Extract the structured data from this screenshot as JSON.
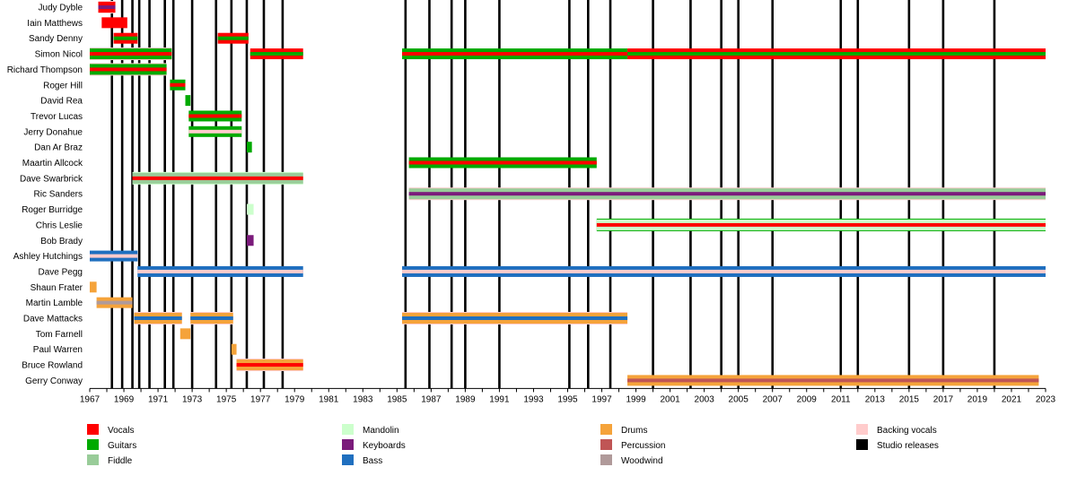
{
  "chart_data": {
    "type": "timeline",
    "title": "",
    "x_range": [
      1967,
      2023
    ],
    "tick_labels": [
      "1967",
      "1969",
      "1971",
      "1973",
      "1975",
      "1977",
      "1979",
      "1981",
      "1983",
      "1985",
      "1987",
      "1989",
      "1991",
      "1993",
      "1995",
      "1997",
      "1999",
      "2001",
      "2003",
      "2005",
      "2007",
      "2009",
      "2011",
      "2013",
      "2015",
      "2017",
      "2019",
      "2021",
      "2023"
    ],
    "grid": false,
    "studio_releases": [
      1968.3,
      1968.9,
      1969.5,
      1969.9,
      1970.5,
      1971.4,
      1971.9,
      1973.0,
      1974.4,
      1975.3,
      1976.2,
      1977.2,
      1978.3,
      1985.5,
      1986.9,
      1988.2,
      1989.0,
      1991.0,
      1995.1,
      1996.2,
      1997.5,
      2000.0,
      2002.2,
      2004.0,
      2005.0,
      2007.0,
      2011.0,
      2012.0,
      2015.0,
      2017.0,
      2020.0
    ],
    "members": [
      {
        "name": "Judy Dyble",
        "bars": [
          {
            "start": 1967.5,
            "end": 1968.5,
            "main": "vocals",
            "accent": "keyboards",
            "extra": "backing"
          }
        ]
      },
      {
        "name": "Iain Matthews",
        "bars": [
          {
            "start": 1967.7,
            "end": 1969.2,
            "main": "vocals"
          }
        ]
      },
      {
        "name": "Sandy Denny",
        "bars": [
          {
            "start": 1968.4,
            "end": 1969.8,
            "main": "vocals",
            "accent": "guitars"
          },
          {
            "start": 1974.5,
            "end": 1976.3,
            "main": "vocals",
            "accent": "guitars"
          }
        ]
      },
      {
        "name": "Simon Nicol",
        "bars": [
          {
            "start": 1967.0,
            "end": 1971.8,
            "main": "guitars",
            "accent": "vocals",
            "extra": "backing"
          },
          {
            "start": 1976.4,
            "end": 1979.5,
            "main": "vocals",
            "accent": "guitars"
          },
          {
            "start": 1985.3,
            "end": 1998.5,
            "main": "guitars",
            "accent": "vocals"
          },
          {
            "start": 1998.5,
            "end": 2023.0,
            "main": "vocals",
            "accent": "guitars"
          }
        ]
      },
      {
        "name": "Richard Thompson",
        "bars": [
          {
            "start": 1967.0,
            "end": 1971.5,
            "main": "guitars",
            "accent": "vocals",
            "extra": "backing"
          }
        ]
      },
      {
        "name": "Roger Hill",
        "bars": [
          {
            "start": 1971.7,
            "end": 1972.6,
            "main": "guitars",
            "accent": "vocals"
          }
        ]
      },
      {
        "name": "David Rea",
        "bars": [
          {
            "start": 1972.6,
            "end": 1972.9,
            "main": "guitars"
          }
        ]
      },
      {
        "name": "Trevor Lucas",
        "bars": [
          {
            "start": 1972.8,
            "end": 1975.9,
            "main": "guitars",
            "accent": "vocals"
          }
        ]
      },
      {
        "name": "Jerry Donahue",
        "bars": [
          {
            "start": 1972.8,
            "end": 1975.9,
            "main": "guitars",
            "accent": "backing"
          }
        ]
      },
      {
        "name": "Dan Ar Braz",
        "bars": [
          {
            "start": 1976.2,
            "end": 1976.5,
            "main": "guitars"
          }
        ]
      },
      {
        "name": "Maartin Allcock",
        "bars": [
          {
            "start": 1985.7,
            "end": 1996.7,
            "main": "guitars",
            "accent": "vocals"
          }
        ]
      },
      {
        "name": "Dave Swarbrick",
        "bars": [
          {
            "start": 1969.5,
            "end": 1979.5,
            "main": "fiddle",
            "accent": "vocals",
            "extra": "mandolin"
          }
        ]
      },
      {
        "name": "Ric Sanders",
        "bars": [
          {
            "start": 1985.7,
            "end": 2023.0,
            "main": "fiddle",
            "accent": "keyboards",
            "extra": "backing"
          }
        ]
      },
      {
        "name": "Roger Burridge",
        "bars": [
          {
            "start": 1976.2,
            "end": 1976.6,
            "main": "mandolin"
          }
        ]
      },
      {
        "name": "Chris Leslie",
        "bars": [
          {
            "start": 1996.7,
            "end": 2023.0,
            "main": "mandolin",
            "accent": "vocals",
            "extra": "guitars"
          }
        ]
      },
      {
        "name": "Bob Brady",
        "bars": [
          {
            "start": 1976.2,
            "end": 1976.6,
            "main": "keyboards"
          }
        ]
      },
      {
        "name": "Ashley Hutchings",
        "bars": [
          {
            "start": 1967.0,
            "end": 1969.8,
            "main": "bass",
            "accent": "backing"
          }
        ]
      },
      {
        "name": "Dave Pegg",
        "bars": [
          {
            "start": 1969.8,
            "end": 1979.5,
            "main": "bass",
            "accent": "backing"
          },
          {
            "start": 1985.3,
            "end": 2023.0,
            "main": "bass",
            "accent": "backing"
          }
        ]
      },
      {
        "name": "Shaun Frater",
        "bars": [
          {
            "start": 1967.0,
            "end": 1967.4,
            "main": "drums"
          }
        ]
      },
      {
        "name": "Martin Lamble",
        "bars": [
          {
            "start": 1967.4,
            "end": 1969.5,
            "main": "drums",
            "accent": "woodwind"
          }
        ]
      },
      {
        "name": "Dave Mattacks",
        "bars": [
          {
            "start": 1969.6,
            "end": 1972.4,
            "main": "drums",
            "accent": "bass",
            "extra": "backing"
          },
          {
            "start": 1972.9,
            "end": 1975.4,
            "main": "drums",
            "accent": "bass",
            "extra": "backing"
          },
          {
            "start": 1985.3,
            "end": 1998.5,
            "main": "drums",
            "accent": "bass",
            "extra": "backing"
          }
        ]
      },
      {
        "name": "Tom Farnell",
        "bars": [
          {
            "start": 1972.3,
            "end": 1972.9,
            "main": "drums"
          }
        ]
      },
      {
        "name": "Paul Warren",
        "bars": [
          {
            "start": 1975.3,
            "end": 1975.6,
            "main": "drums"
          }
        ]
      },
      {
        "name": "Bruce Rowland",
        "bars": [
          {
            "start": 1975.6,
            "end": 1979.5,
            "main": "drums",
            "accent": "vocals",
            "extra": "backing"
          }
        ]
      },
      {
        "name": "Gerry Conway",
        "bars": [
          {
            "start": 1998.5,
            "end": 2022.6,
            "main": "drums",
            "accent": "percussion"
          }
        ]
      }
    ],
    "legend": [
      {
        "key": "vocals",
        "label": "Vocals",
        "color": "#ff0000"
      },
      {
        "key": "guitars",
        "label": "Guitars",
        "color": "#00aa00"
      },
      {
        "key": "fiddle",
        "label": "Fiddle",
        "color": "#99cc99"
      },
      {
        "key": "mandolin",
        "label": "Mandolin",
        "color": "#ccffcc"
      },
      {
        "key": "keyboards",
        "label": "Keyboards",
        "color": "#7b1b7b"
      },
      {
        "key": "bass",
        "label": "Bass",
        "color": "#1f6fbf"
      },
      {
        "key": "drums",
        "label": "Drums",
        "color": "#f5a33a"
      },
      {
        "key": "percussion",
        "label": "Percussion",
        "color": "#c05555"
      },
      {
        "key": "woodwind",
        "label": "Woodwind",
        "color": "#b09a9a"
      },
      {
        "key": "backing",
        "label": "Backing vocals",
        "color": "#ffcccc"
      },
      {
        "key": "studio",
        "label": "Studio releases",
        "color": "#000000"
      }
    ]
  }
}
